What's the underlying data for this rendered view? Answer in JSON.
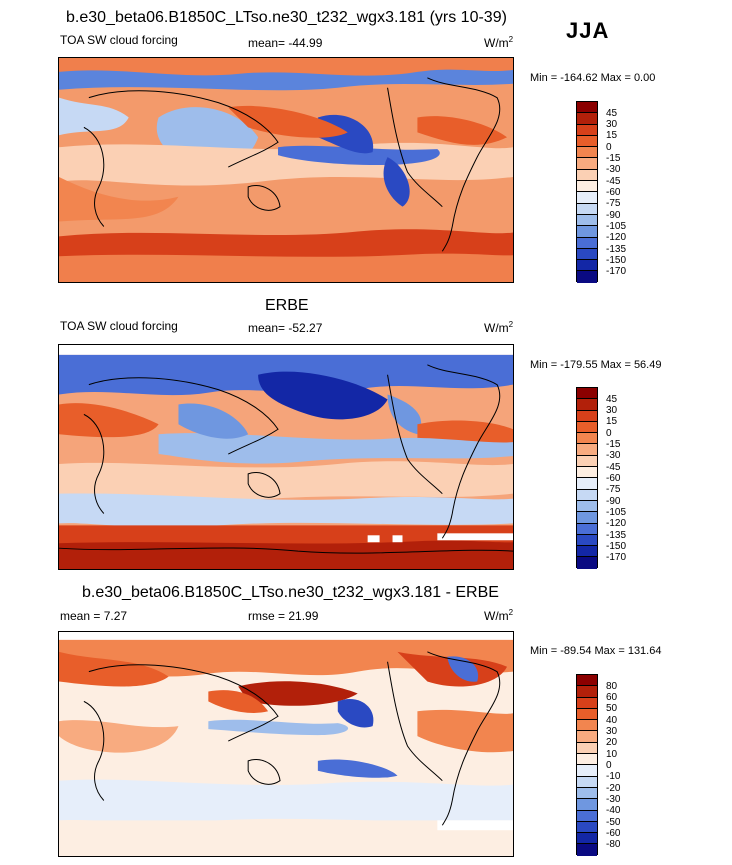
{
  "season": "JJA",
  "panels": [
    {
      "title": "b.e30_beta06.B1850C_LTso.ne30_t232_wgx3.181 (yrs 10-39)",
      "left_label": "TOA SW cloud forcing",
      "center_label": "mean= -44.99",
      "units": "W/m",
      "units_sup": "2",
      "minmax": "Min = -164.62 Max =   0.00",
      "colorbar": {
        "colors": [
          "#8b0000",
          "#b2200a",
          "#d7401a",
          "#e85e2a",
          "#f2854f",
          "#f8ab80",
          "#fbd0b4",
          "#fdeee2",
          "#e6eefa",
          "#c6d9f4",
          "#9ebdeb",
          "#6f97e0",
          "#4a6ed6",
          "#2a49c2",
          "#1327a6",
          "#0a0a82"
        ],
        "labels": [
          "45",
          "30",
          "15",
          "0",
          "-15",
          "-30",
          "-45",
          "-60",
          "-75",
          "-90",
          "-105",
          "-120",
          "-135",
          "-150",
          "-170"
        ]
      }
    },
    {
      "title": "ERBE",
      "left_label": "TOA SW cloud forcing",
      "center_label": "mean= -52.27",
      "units": "W/m",
      "units_sup": "2",
      "minmax": "Min = -179.55 Max =  56.49",
      "colorbar": {
        "colors": [
          "#8b0000",
          "#b2200a",
          "#d7401a",
          "#e85e2a",
          "#f2854f",
          "#f8ab80",
          "#fbd0b4",
          "#fdeee2",
          "#e6eefa",
          "#c6d9f4",
          "#9ebdeb",
          "#6f97e0",
          "#4a6ed6",
          "#2a49c2",
          "#1327a6",
          "#0a0a82"
        ],
        "labels": [
          "45",
          "30",
          "15",
          "0",
          "-15",
          "-30",
          "-45",
          "-60",
          "-75",
          "-90",
          "-105",
          "-120",
          "-135",
          "-150",
          "-170"
        ]
      }
    },
    {
      "title": "b.e30_beta06.B1850C_LTso.ne30_t232_wgx3.181 - ERBE",
      "left_label": "mean =   7.27",
      "center_label": "rmse =  21.99",
      "units": "W/m",
      "units_sup": "2",
      "minmax": "Min = -89.54 Max = 131.64",
      "colorbar": {
        "colors": [
          "#8b0000",
          "#b2200a",
          "#d7401a",
          "#e85e2a",
          "#f2854f",
          "#f8ab80",
          "#fbd0b4",
          "#fdeee2",
          "#e6eefa",
          "#c6d9f4",
          "#9ebdeb",
          "#6f97e0",
          "#4a6ed6",
          "#2a49c2",
          "#1327a6",
          "#0a0a82"
        ],
        "labels": [
          "80",
          "60",
          "50",
          "40",
          "30",
          "20",
          "10",
          "0",
          "-10",
          "-20",
          "-30",
          "-40",
          "-50",
          "-60",
          "-80"
        ]
      }
    }
  ]
}
